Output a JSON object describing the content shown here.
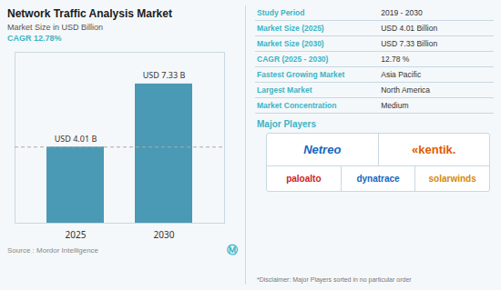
{
  "chart_data": {
    "type": "bar",
    "title": "Network Traffic Analysis Market",
    "subtitle": "Market Size in USD Billion",
    "categories": [
      "2025",
      "2030"
    ],
    "values": [
      4.01,
      7.33
    ],
    "value_labels": [
      "USD 4.01 B",
      "USD 7.33 B"
    ],
    "data_labels": true,
    "color": "#4a9ab5",
    "ylim": [
      0,
      9.0
    ],
    "tick_labels": "x",
    "reference_line": 4.01,
    "annotations": [
      "CAGR 12.78%",
      "Source :  Mordor Intelligence",
      "Ⓜ"
    ],
    "table": [
      [
        "Study Period",
        "2019 - 2030"
      ],
      [
        "Market Size (2025)",
        "USD 4.01 Billion"
      ],
      [
        "Market Size (2030)",
        "USD 7.33 Billion"
      ],
      [
        "CAGR (2025 - 2030)",
        "12.78 %"
      ],
      [
        "Fastest Growing Market",
        "Asia Pacific"
      ],
      [
        "Largest Market",
        "North America"
      ],
      [
        "Market Concentration",
        "Medium"
      ]
    ],
    "major_players_label": "Major Players",
    "players": [
      [
        "Netreo",
        "«kentik."
      ],
      [
        "paloalto",
        "dynatrace",
        "solarwinds"
      ]
    ],
    "disclaimer": "*Disclaimer: Major Players sorted in no particular order"
  }
}
